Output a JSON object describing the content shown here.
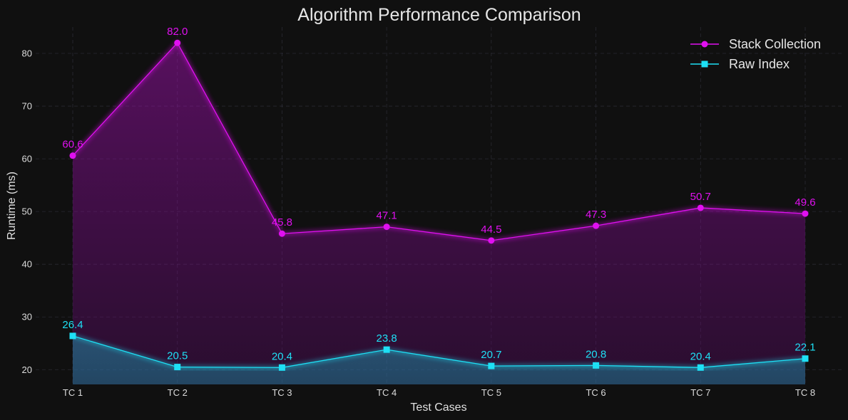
{
  "chart_data": {
    "type": "line",
    "title": "Algorithm Performance Comparison",
    "xlabel": "Test Cases",
    "ylabel": "Runtime (ms)",
    "categories": [
      "TC 1",
      "TC 2",
      "TC 3",
      "TC 4",
      "TC 5",
      "TC 6",
      "TC 7",
      "TC 8"
    ],
    "ylim": [
      17.2,
      85
    ],
    "yticks": [
      20,
      30,
      40,
      50,
      60,
      70,
      80
    ],
    "grid": true,
    "legend_position": "top-right",
    "series": [
      {
        "name": "Stack Collection",
        "values": [
          60.6,
          82.0,
          45.8,
          47.1,
          44.5,
          47.3,
          50.7,
          49.6
        ],
        "labels": [
          "60.6",
          "82.0",
          "45.8",
          "47.1",
          "44.5",
          "47.3",
          "50.7",
          "49.6"
        ],
        "color": "#e010f0",
        "marker": "circle"
      },
      {
        "name": "Raw Index",
        "values": [
          26.4,
          20.5,
          20.4,
          23.8,
          20.7,
          20.8,
          20.4,
          22.1
        ],
        "labels": [
          "26.4",
          "20.5",
          "20.4",
          "23.8",
          "20.7",
          "20.8",
          "20.4",
          "22.1"
        ],
        "color": "#1ee0f5",
        "marker": "square"
      }
    ]
  }
}
